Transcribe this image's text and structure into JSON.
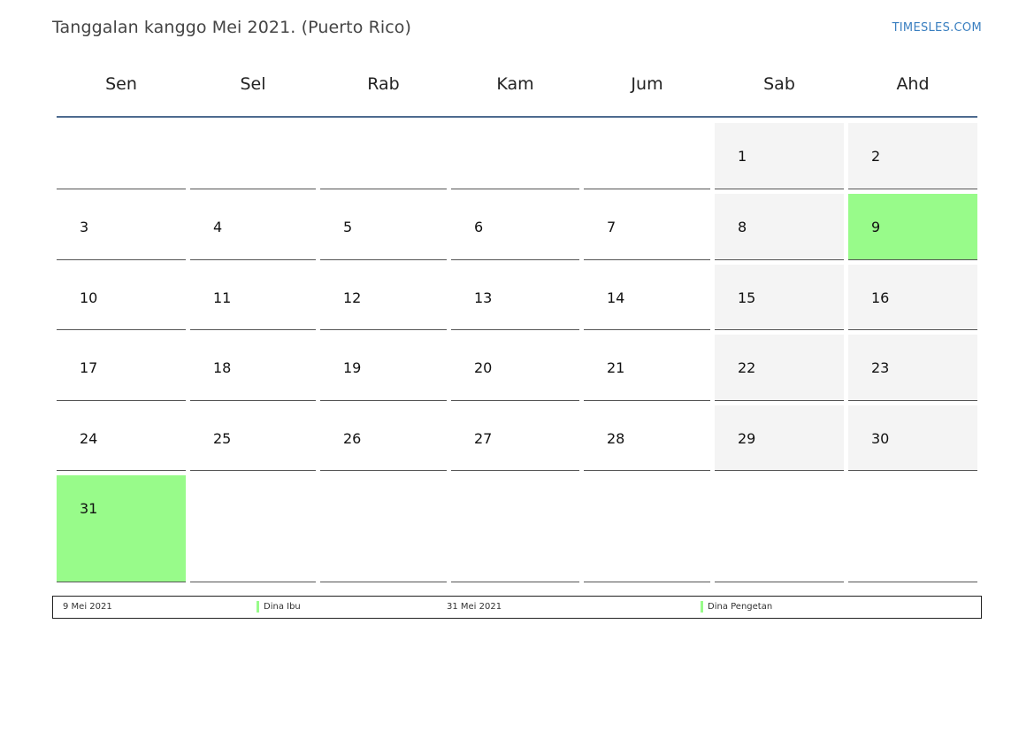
{
  "header": {
    "title": "Tanggalan kanggo Mei 2021. (Puerto Rico)",
    "site": "TIMESLES.COM"
  },
  "weekdays": [
    "Sen",
    "Sel",
    "Rab",
    "Kam",
    "Jum",
    "Sab",
    "Ahd"
  ],
  "colors": {
    "weekend": "#f4f4f4",
    "holiday": "#98fb8a",
    "header_line": "#4d6b8f",
    "site_link": "#3a7fc0"
  },
  "calendar": {
    "weeks": [
      [
        "",
        "",
        "",
        "",
        "",
        "1",
        "2"
      ],
      [
        "3",
        "4",
        "5",
        "6",
        "7",
        "8",
        "9"
      ],
      [
        "10",
        "11",
        "12",
        "13",
        "14",
        "15",
        "16"
      ],
      [
        "17",
        "18",
        "19",
        "20",
        "21",
        "22",
        "23"
      ],
      [
        "24",
        "25",
        "26",
        "27",
        "28",
        "29",
        "30"
      ],
      [
        "31",
        "",
        "",
        "",
        "",
        "",
        ""
      ]
    ],
    "holidays": [
      "9",
      "31"
    ]
  },
  "legend": [
    {
      "date": "9 Mei 2021",
      "name": "Dina Ibu"
    },
    {
      "date": "31 Mei 2021",
      "name": "Dina Pengetan"
    }
  ]
}
